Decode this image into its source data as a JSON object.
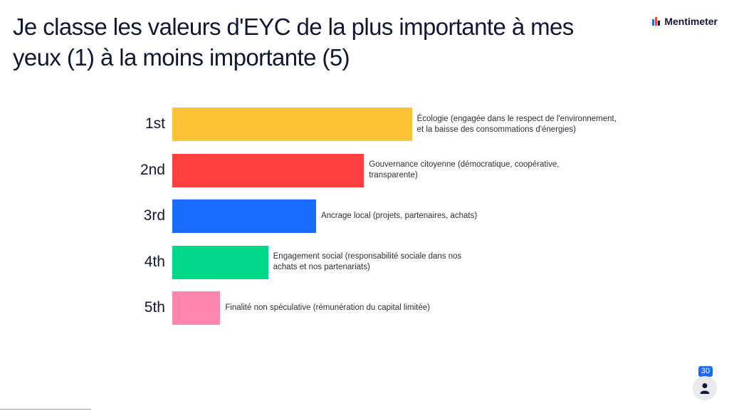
{
  "header": {
    "title": "Je classe les valeurs d'EYC de la plus importante à mes yeux (1) à la moins importante (5)",
    "brand": "Mentimeter",
    "brand_icon": "mentimeter-logo-icon"
  },
  "chart_data": {
    "type": "bar",
    "orientation": "horizontal",
    "categories": [
      "1st",
      "2nd",
      "3rd",
      "4th",
      "5th"
    ],
    "series": [
      {
        "values": [
          5,
          4,
          3,
          2,
          1
        ]
      }
    ],
    "bar_labels": [
      "Écologie (engagée dans le respect de l'environnement, et la baisse des consommations d'énergies)",
      "Gouvernance citoyenne (démocratique, coopérative, transparente)",
      "Ancrage local (projets, partenaires, achats)",
      "Engagement social (responsabilité sociale dans nos achats et nos partenariats)",
      "Finalité non spéculative (rémunération du capital limitée)"
    ],
    "colors": [
      "#fdc337",
      "#ff403f",
      "#196cff",
      "#00d88a",
      "#ff85b0"
    ],
    "xlim": [
      0,
      5.6
    ]
  },
  "footer": {
    "participant_count": "30",
    "participant_icon": "person-icon"
  }
}
